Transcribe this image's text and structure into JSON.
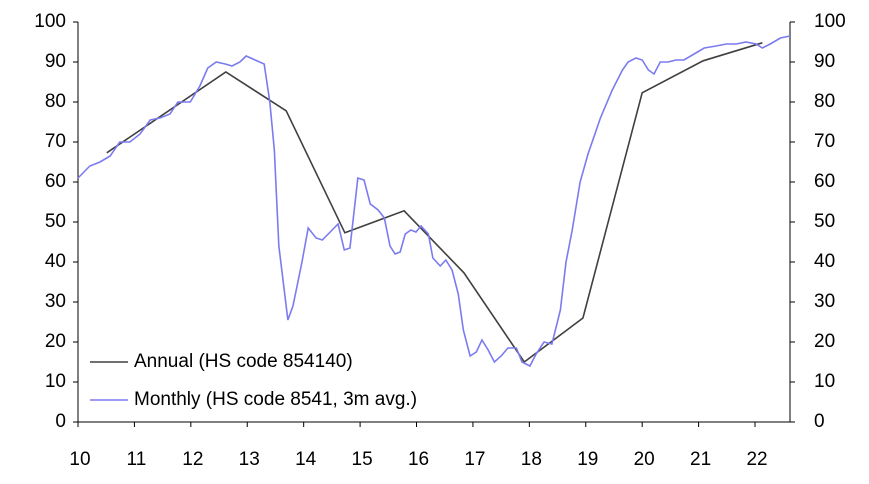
{
  "chart_data": {
    "type": "line",
    "xlim": [
      10,
      22.62
    ],
    "xticks": [
      10,
      11,
      12,
      13,
      14,
      15,
      16,
      17,
      18,
      19,
      20,
      21,
      22
    ],
    "ylim": [
      0,
      100
    ],
    "yticks": [
      0,
      10,
      20,
      30,
      40,
      50,
      60,
      70,
      80,
      90,
      100
    ],
    "y2lim": [
      0,
      100
    ],
    "y2ticks": [
      0,
      10,
      20,
      30,
      40,
      50,
      60,
      70,
      80,
      90,
      100
    ],
    "legend": "lower left",
    "series": [
      {
        "name": "Annual (HS code 854140)",
        "color": "#404040",
        "x": [
          10.51,
          12.62,
          13.69,
          14.73,
          15.78,
          16.84,
          17.91,
          18.95,
          20.0,
          21.08,
          22.13
        ],
        "values": [
          67.3,
          87.5,
          77.8,
          47.3,
          52.8,
          37.3,
          15,
          26,
          82.3,
          90.3,
          94.8
        ]
      },
      {
        "name": "Monthly (HS code 8541, 3m avg.)",
        "color": "#7b7bf0",
        "x": [
          10.0,
          10.21,
          10.39,
          10.57,
          10.74,
          10.92,
          11.1,
          11.28,
          11.45,
          11.63,
          11.77,
          11.99,
          12.16,
          12.3,
          12.45,
          12.61,
          12.73,
          12.87,
          12.98,
          13.14,
          13.3,
          13.4,
          13.48,
          13.56,
          13.72,
          13.81,
          13.97,
          14.08,
          14.22,
          14.33,
          14.47,
          14.61,
          14.72,
          14.82,
          14.96,
          15.07,
          15.18,
          15.32,
          15.43,
          15.53,
          15.62,
          15.71,
          15.8,
          15.9,
          15.99,
          16.08,
          16.21,
          16.29,
          16.42,
          16.52,
          16.63,
          16.74,
          16.83,
          16.95,
          17.06,
          17.16,
          17.27,
          17.38,
          17.5,
          17.62,
          17.77,
          17.87,
          18.01,
          18.12,
          18.26,
          18.4,
          18.55,
          18.65,
          18.76,
          18.9,
          19.04,
          19.26,
          19.47,
          19.65,
          19.75,
          19.89,
          20.0,
          20.11,
          20.21,
          20.32,
          20.46,
          20.6,
          20.74,
          20.92,
          21.1,
          21.31,
          21.49,
          21.67,
          21.84,
          22.02,
          22.13,
          22.27,
          22.45,
          22.62
        ],
        "values": [
          61,
          64,
          65,
          66.5,
          70,
          70,
          72,
          75.5,
          76,
          77,
          80,
          80,
          84,
          88.5,
          90,
          89.5,
          89,
          90,
          91.5,
          90.5,
          89.5,
          80,
          68,
          44,
          25.5,
          29,
          40,
          48.5,
          46,
          45.5,
          47.5,
          49.5,
          43,
          43.5,
          61,
          60.5,
          54.5,
          53,
          51,
          44,
          42,
          42.5,
          47,
          48,
          47.5,
          49,
          47,
          41,
          39,
          40.5,
          38,
          32,
          23,
          16.5,
          17.5,
          20.5,
          18,
          15,
          16.5,
          18.5,
          18.5,
          15,
          14,
          17,
          20,
          19.5,
          28,
          40,
          48,
          60,
          67,
          76,
          83,
          88,
          90,
          91,
          90.5,
          88,
          87,
          90,
          90,
          90.5,
          90.5,
          92,
          93.5,
          94,
          94.5,
          94.5,
          95,
          94.5,
          93.5,
          94.5,
          96,
          96.5
        ]
      }
    ]
  }
}
